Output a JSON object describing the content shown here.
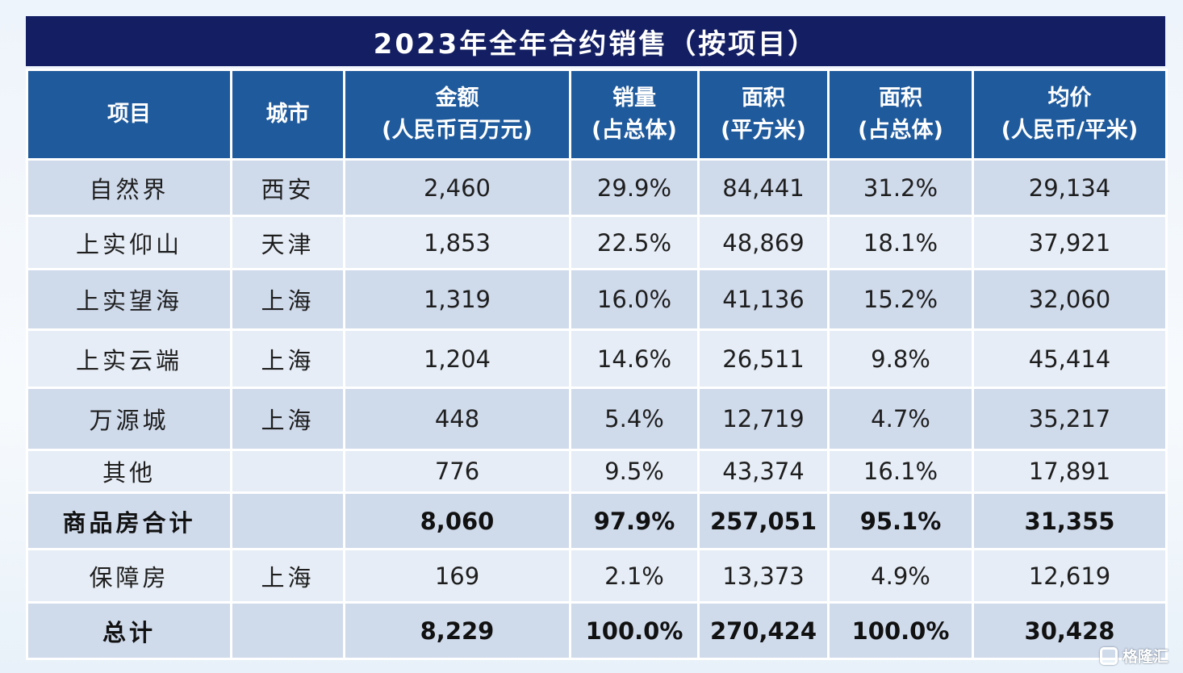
{
  "title": "2023年全年合约销售（按项目）",
  "headers": [
    {
      "line1": "项目",
      "line2": ""
    },
    {
      "line1": "城市",
      "line2": ""
    },
    {
      "line1": "金额",
      "line2": "(人民币百万元)"
    },
    {
      "line1": "销量",
      "line2": "(占总体)"
    },
    {
      "line1": "面积",
      "line2": "(平方米)"
    },
    {
      "line1": "面积",
      "line2": "(占总体)"
    },
    {
      "line1": "均价",
      "line2": "(人民币/平米)"
    }
  ],
  "rows": [
    {
      "project": "自然界",
      "city": "西安",
      "amount": "2,460",
      "sales_share": "29.9%",
      "area": "84,441",
      "area_share": "31.2%",
      "avg_price": "29,134"
    },
    {
      "project": "上实仰山",
      "city": "天津",
      "amount": "1,853",
      "sales_share": "22.5%",
      "area": "48,869",
      "area_share": "18.1%",
      "avg_price": "37,921"
    },
    {
      "project": "上实望海",
      "city": "上海",
      "amount": "1,319",
      "sales_share": "16.0%",
      "area": "41,136",
      "area_share": "15.2%",
      "avg_price": "32,060"
    },
    {
      "project": "上实云端",
      "city": "上海",
      "amount": "1,204",
      "sales_share": "14.6%",
      "area": "26,511",
      "area_share": "9.8%",
      "avg_price": "45,414"
    },
    {
      "project": "万源城",
      "city": "上海",
      "amount": "448",
      "sales_share": "5.4%",
      "area": "12,719",
      "area_share": "4.7%",
      "avg_price": "35,217"
    },
    {
      "project": "其他",
      "city": "",
      "amount": "776",
      "sales_share": "9.5%",
      "area": "43,374",
      "area_share": "16.1%",
      "avg_price": "17,891"
    },
    {
      "project": "商品房合计",
      "city": "",
      "amount": "8,060",
      "sales_share": "97.9%",
      "area": "257,051",
      "area_share": "95.1%",
      "avg_price": "31,355"
    },
    {
      "project": "保障房",
      "city": "上海",
      "amount": "169",
      "sales_share": "2.1%",
      "area": "13,373",
      "area_share": "4.9%",
      "avg_price": "12,619"
    },
    {
      "project": "总计",
      "city": "",
      "amount": "8,229",
      "sales_share": "100.0%",
      "area": "270,424",
      "area_share": "100.0%",
      "avg_price": "30,428"
    }
  ],
  "watermark": {
    "text": "格隆汇",
    "icon": "gelonghui-logo-icon"
  }
}
